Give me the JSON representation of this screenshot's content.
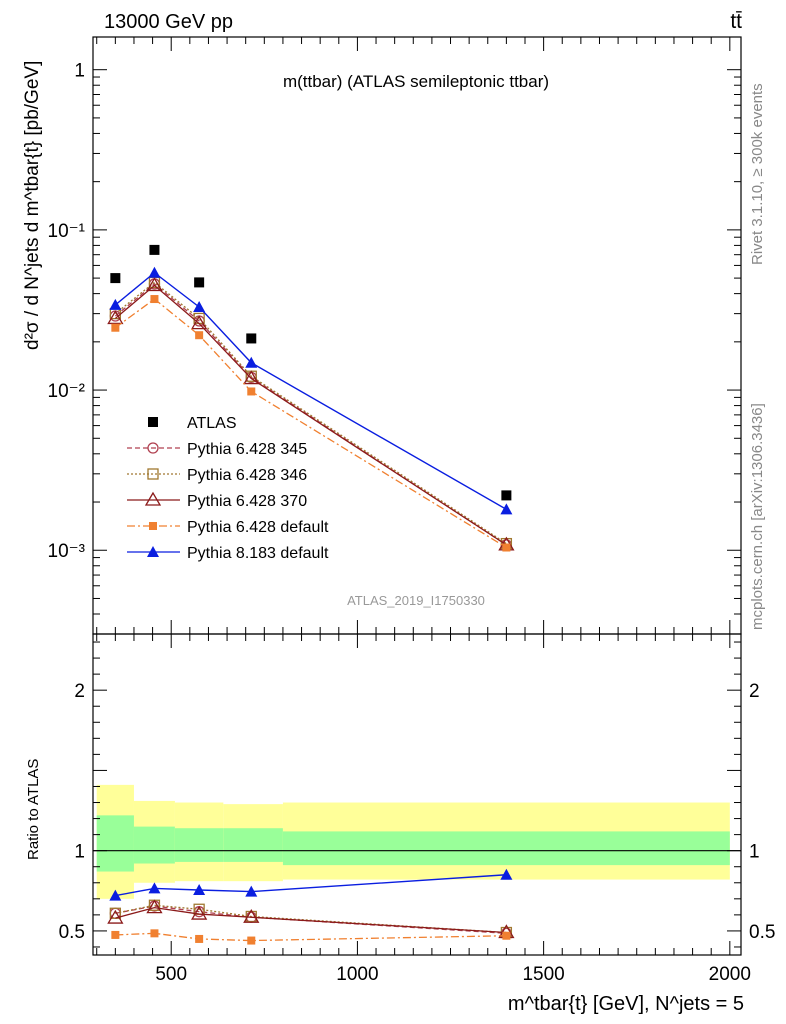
{
  "header": {
    "left": "13000 GeV pp",
    "right": "tt̄"
  },
  "side_text": {
    "rivet": "Rivet 3.1.10, ≥ 300k events",
    "mcplots": "mcplots.cern.ch [arXiv:1306.3436]"
  },
  "watermark": "ATLAS_2019_I1750330",
  "colors": {
    "atlas": "#000000",
    "py345": "#b04050",
    "py346": "#a07830",
    "py370": "#8b1a1a",
    "pydefault": "#f08030",
    "py8": "#0a1ee0",
    "band_outer": "#ffff99",
    "band_inner": "#99ff99"
  },
  "chart_data": [
    {
      "type": "line",
      "title": "m(ttbar) (ATLAS semileptonic ttbar)",
      "ylabel": "d²σ / d N^jets d m^tbar{t} [pb/GeV]",
      "yscale": "log",
      "ylim": [
        0.0003,
        1.6
      ],
      "xlim": [
        290,
        2030
      ],
      "ytick_labels": [
        "10⁻³",
        "10⁻²",
        "10⁻¹",
        "1"
      ],
      "x": [
        350,
        455,
        575,
        715,
        1400
      ],
      "series": [
        {
          "name": "ATLAS",
          "key": "atlas",
          "values": [
            0.05,
            0.075,
            0.047,
            0.021,
            0.0022
          ]
        },
        {
          "name": "Pythia 6.428 345",
          "key": "py345",
          "values": [
            0.029,
            0.046,
            0.027,
            0.012,
            0.00108
          ]
        },
        {
          "name": "Pythia 6.428 346",
          "key": "py346",
          "values": [
            0.03,
            0.047,
            0.028,
            0.0122,
            0.0011
          ]
        },
        {
          "name": "Pythia 6.428 370",
          "key": "py370",
          "values": [
            0.028,
            0.045,
            0.026,
            0.0118,
            0.00108
          ]
        },
        {
          "name": "Pythia 6.428 default",
          "key": "pydefault",
          "values": [
            0.0245,
            0.037,
            0.022,
            0.0098,
            0.00104
          ]
        },
        {
          "name": "Pythia 8.183 default",
          "key": "py8",
          "values": [
            0.034,
            0.054,
            0.033,
            0.0148,
            0.0018
          ]
        }
      ]
    },
    {
      "type": "line",
      "title": "",
      "ylabel": "Ratio to ATLAS",
      "xlabel": "m^tbar{t} [GeV], N^jets = 5",
      "ylim": [
        0.35,
        2.35
      ],
      "xlim": [
        290,
        2030
      ],
      "ytick_labels": [
        "0.5",
        "1",
        "2"
      ],
      "xtick_labels": [
        "500",
        "1000",
        "1500",
        "2000"
      ],
      "bands": [
        {
          "from": 300,
          "to": 400,
          "outer": [
            0.7,
            1.41
          ],
          "inner": [
            0.87,
            1.22
          ]
        },
        {
          "from": 400,
          "to": 510,
          "outer": [
            0.8,
            1.31
          ],
          "inner": [
            0.92,
            1.15
          ]
        },
        {
          "from": 510,
          "to": 640,
          "outer": [
            0.81,
            1.3
          ],
          "inner": [
            0.93,
            1.14
          ]
        },
        {
          "from": 640,
          "to": 800,
          "outer": [
            0.81,
            1.29
          ],
          "inner": [
            0.93,
            1.14
          ]
        },
        {
          "from": 800,
          "to": 2000,
          "outer": [
            0.82,
            1.3
          ],
          "inner": [
            0.91,
            1.12
          ]
        }
      ],
      "x": [
        350,
        455,
        575,
        715,
        1400
      ],
      "series": [
        {
          "name": "Pythia 6.428 345",
          "key": "py345",
          "values": [
            0.61,
            0.655,
            0.62,
            0.585,
            0.485
          ]
        },
        {
          "name": "Pythia 6.428 346",
          "key": "py346",
          "values": [
            0.61,
            0.66,
            0.635,
            0.59,
            0.49
          ]
        },
        {
          "name": "Pythia 6.428 370",
          "key": "py370",
          "values": [
            0.58,
            0.645,
            0.605,
            0.585,
            0.49
          ]
        },
        {
          "name": "Pythia 6.428 default",
          "key": "pydefault",
          "values": [
            0.475,
            0.485,
            0.45,
            0.44,
            0.47
          ]
        },
        {
          "name": "Pythia 8.183 default",
          "key": "py8",
          "values": [
            0.72,
            0.765,
            0.755,
            0.745,
            0.85
          ]
        }
      ]
    }
  ]
}
